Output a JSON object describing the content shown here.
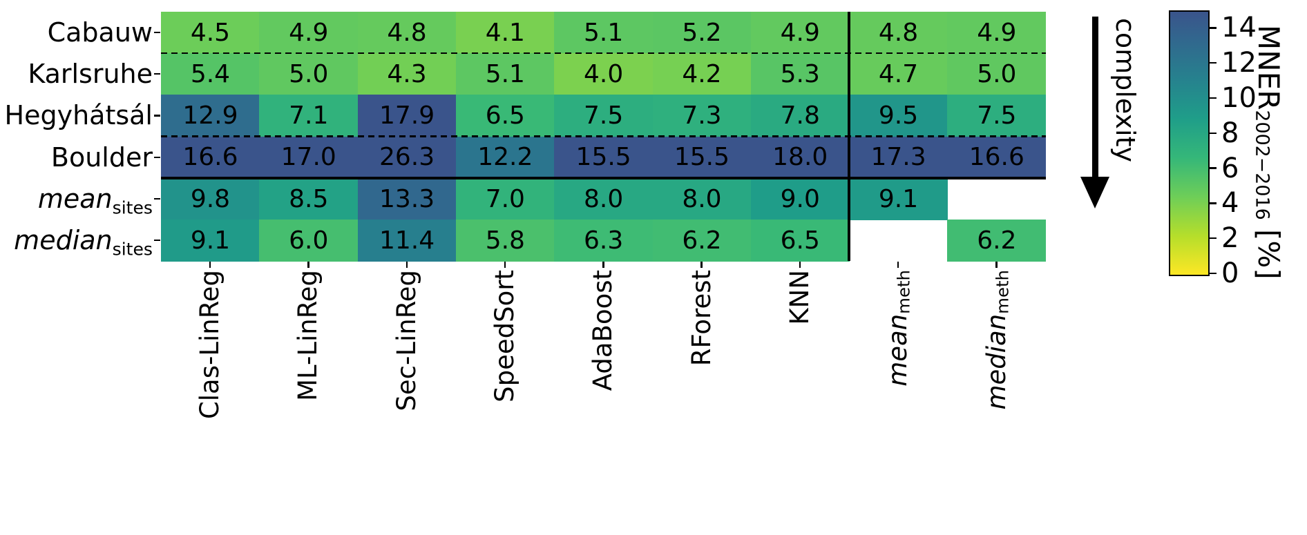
{
  "figure": {
    "background": "#ffffff",
    "text_color": "#000000"
  },
  "chart_data": {
    "type": "heatmap",
    "rows": [
      {
        "label": "Cabauw",
        "italic": false,
        "sub": ""
      },
      {
        "label": "Karlsruhe",
        "italic": false,
        "sub": ""
      },
      {
        "label": "Hegyhátsál",
        "italic": false,
        "sub": ""
      },
      {
        "label": "Boulder",
        "italic": false,
        "sub": ""
      },
      {
        "label": "mean",
        "italic": true,
        "sub": "sites"
      },
      {
        "label": "median",
        "italic": true,
        "sub": "sites"
      }
    ],
    "columns": [
      {
        "label": "Clas-LinReg",
        "italic": false,
        "sub": ""
      },
      {
        "label": "ML-LinReg",
        "italic": false,
        "sub": ""
      },
      {
        "label": "Sec-LinReg",
        "italic": false,
        "sub": ""
      },
      {
        "label": "SpeedSort",
        "italic": false,
        "sub": ""
      },
      {
        "label": "AdaBoost",
        "italic": false,
        "sub": ""
      },
      {
        "label": "RForest",
        "italic": false,
        "sub": ""
      },
      {
        "label": "KNN",
        "italic": false,
        "sub": ""
      },
      {
        "label": "mean",
        "italic": true,
        "sub": "meth"
      },
      {
        "label": "median",
        "italic": true,
        "sub": "meth"
      }
    ],
    "values": [
      [
        4.5,
        4.9,
        4.8,
        4.1,
        5.1,
        5.2,
        4.9,
        4.8,
        4.9
      ],
      [
        5.4,
        5.0,
        4.3,
        5.1,
        4.0,
        4.2,
        5.3,
        4.7,
        5.0
      ],
      [
        12.9,
        7.1,
        17.9,
        6.5,
        7.5,
        7.3,
        7.8,
        9.5,
        7.5
      ],
      [
        16.6,
        17.0,
        26.3,
        12.2,
        15.5,
        15.5,
        18.0,
        17.3,
        16.6
      ],
      [
        9.8,
        8.5,
        13.3,
        7.0,
        8.0,
        8.0,
        9.0,
        9.1,
        null
      ],
      [
        9.1,
        6.0,
        11.4,
        5.8,
        6.3,
        6.2,
        6.5,
        null,
        6.2
      ]
    ],
    "value_format_decimals": 1,
    "separators": {
      "dashed_after_rows": [
        0,
        2
      ],
      "solid_after_rows": [
        3
      ],
      "solid_after_cols": [
        6
      ]
    },
    "colorbar": {
      "label_main": "MNER",
      "label_sub": "2002−2016",
      "label_unit": " [%]",
      "ticks": [
        0,
        2,
        4,
        6,
        8,
        10,
        12,
        14
      ],
      "vmin": 0,
      "vmax": 15,
      "colormap_stops": [
        [
          0,
          "#fde725"
        ],
        [
          2.22,
          "#b5de2b"
        ],
        [
          4.44,
          "#6ece58"
        ],
        [
          6.67,
          "#35b779"
        ],
        [
          8.89,
          "#1f9e89"
        ],
        [
          11.11,
          "#26828e"
        ],
        [
          13.33,
          "#31688e"
        ],
        [
          15,
          "#3a548b"
        ]
      ]
    },
    "annotations": {
      "complexity_label": "complexity"
    }
  }
}
